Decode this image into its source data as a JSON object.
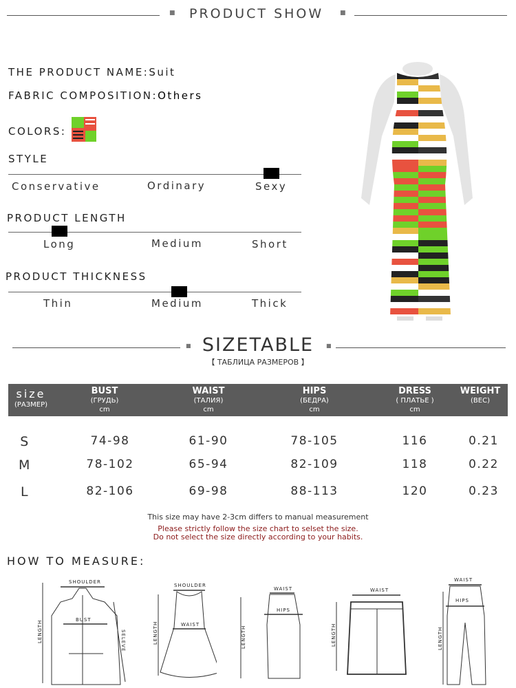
{
  "header": {
    "title": "PRODUCT SHOW"
  },
  "product": {
    "name_label": "THE PRODUCT NAME:",
    "name_value": "Suit",
    "fabric_label": "FABRIC COMPOSITION:",
    "fabric_value": "Others",
    "colors_label": "COLORS:"
  },
  "scales": [
    {
      "title": "STYLE",
      "options": [
        "Conservative",
        "Ordinary",
        "Sexy"
      ],
      "selected": "Sexy"
    },
    {
      "title": "PRODUCT LENGTH",
      "options": [
        "Long",
        "Medium",
        "Short"
      ],
      "selected": "Long"
    },
    {
      "title": "PRODUCT THICKNESS",
      "options": [
        "Thin",
        "Medium",
        "Thick"
      ],
      "selected": "Medium"
    }
  ],
  "sizetable": {
    "title": "SIZETABLE",
    "subtitle": "【 ТАБЛИЦА РАЗМЕРОВ 】",
    "headers": [
      {
        "main": "size",
        "sub": "(РАЗМЕР)",
        "unit": ""
      },
      {
        "main": "BUST",
        "sub": "(ГРУДЬ)",
        "unit": "cm"
      },
      {
        "main": "WAIST",
        "sub": "(ТАЛИЯ)",
        "unit": "cm"
      },
      {
        "main": "HIPS",
        "sub": "(БЕДРА)",
        "unit": "cm"
      },
      {
        "main": "DRESS",
        "sub": "( ПЛАТЬЕ )",
        "unit": "cm"
      },
      {
        "main": "WEIGHT",
        "sub": "(ВЕС)",
        "unit": ""
      }
    ],
    "rows": [
      [
        "S",
        "74-98",
        "61-90",
        "78-105",
        "116",
        "0.21"
      ],
      [
        "M",
        "78-102",
        "65-94",
        "82-109",
        "118",
        "0.22"
      ],
      [
        "L",
        "82-106",
        "69-98",
        "88-113",
        "120",
        "0.23"
      ]
    ]
  },
  "notes": {
    "line1": "This size may have 2-3cm differs to manual measurement",
    "line2": "Please strictly follow the size chart to selset the size.",
    "line3": "Do not select the size directly according to your habits.",
    "warning_color": "#8b1a1a"
  },
  "measure": {
    "title": "HOW TO MEASURE:",
    "labels": {
      "shoulder": "SHOULDER",
      "bust": "BUST",
      "length": "LENGTH",
      "sleeve": "SELEVE",
      "waist": "WAIST",
      "hips": "HIPS"
    }
  },
  "colors": {
    "header_bg": "#5b5b5b",
    "stripe_red": "#e8523f",
    "stripe_green": "#6fd12a",
    "stripe_yellow": "#e9b949"
  }
}
